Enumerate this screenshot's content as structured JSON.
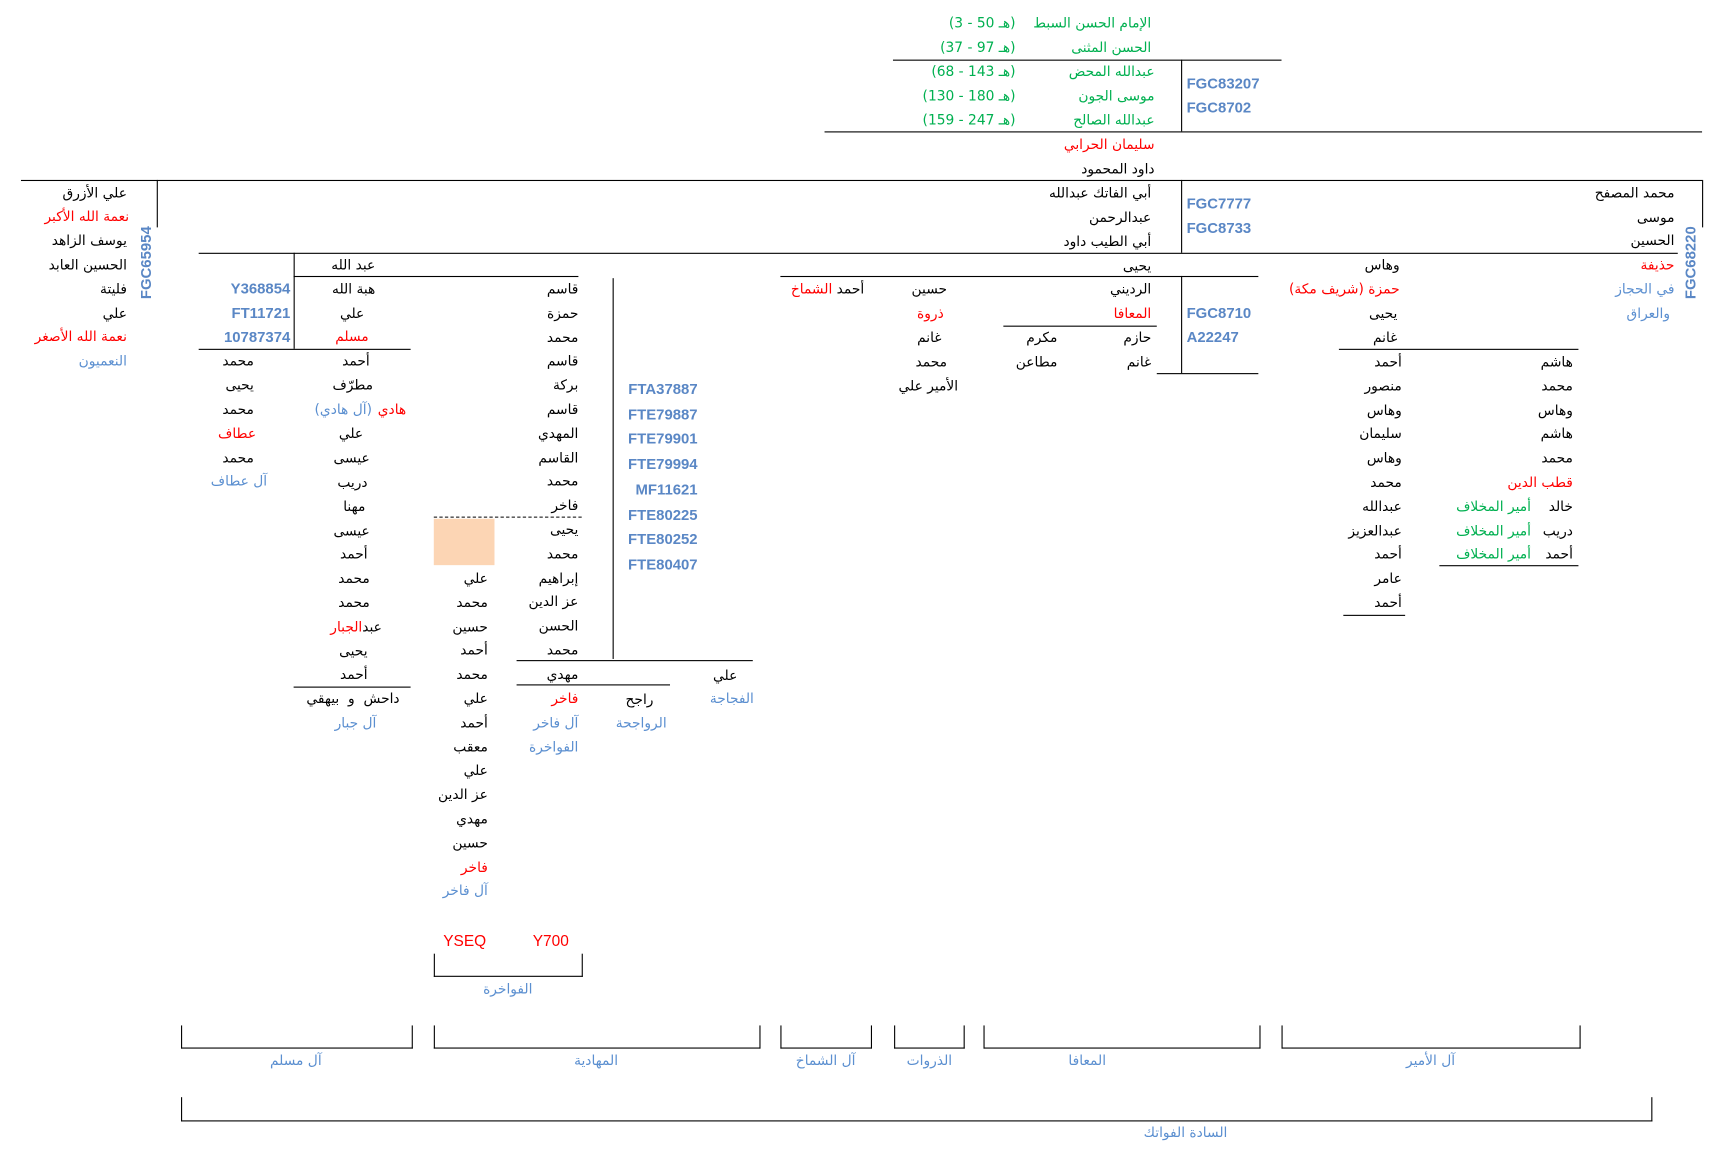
{
  "header_lineage": [
    {
      "name": "الإمام الحسن السبط",
      "dates": "(هـ 50 - 3)"
    },
    {
      "name": "الحسن المثنى",
      "dates": "(هـ 97 - 37)"
    },
    {
      "name": "عبدالله المحض",
      "dates": "(هـ 143 - 68)"
    },
    {
      "name": "موسى الجون",
      "dates": "(هـ 180 - 130)"
    },
    {
      "name": "عبدالله الصالح",
      "dates": "(هـ 247 - 159)"
    }
  ],
  "header_codes": [
    "FGC83207",
    "FGC8702"
  ],
  "sulayman": [
    "سليمان الحرابي",
    "داود المحمود"
  ],
  "fawatik": [
    "أبي الفاتك عبدالله",
    "عبدالرحمن",
    "أبي الطيب داود"
  ],
  "fawatik_codes": [
    "FGC7777",
    "FGC8733"
  ],
  "left_branch": {
    "names": [
      "علي الأزرق",
      "نعمة الله الأكبر",
      "يوسف الزاهد",
      "الحسين العابد",
      "فليتة",
      "علي",
      "نعمة الله الأصغر",
      "النعميون"
    ],
    "code": "FGC65954"
  },
  "right_branch": {
    "names": [
      "محمد المصفح",
      "موسى",
      "الحسين",
      "حذيفة",
      "في الحجاز",
      "والعراق"
    ],
    "code": "FGC68220"
  },
  "abdullah": {
    "title": "عبد الله",
    "names": [
      "هبة الله",
      "علي",
      "مسلم"
    ],
    "codes": [
      "Y368854",
      "FT11721",
      "10787374"
    ]
  },
  "atif_col": [
    "محمد",
    "يحيى",
    "محمد",
    "عطاف",
    "محمد",
    "آل عطاف"
  ],
  "jabbar_col": {
    "names": [
      "أحمد",
      "مطرّف"
    ],
    "hadi": "هادي",
    "hadi_family": "(آل هادي)",
    "names2": [
      "علي",
      "عيسى",
      "دريب",
      "مهنا",
      "عيسى",
      "أحمد",
      "محمد",
      "محمد"
    ],
    "abd": "عبد",
    "jabbar": "الجبار",
    "names3": [
      "يحيى",
      "أحمد"
    ],
    "sons": "داحش  و  بيهقي",
    "family": "آل جبار"
  },
  "qasim_col": [
    "قاسم",
    "حمزة",
    "محمد",
    "قاسم",
    "بركة",
    "قاسم",
    "المهدي",
    "القاسم",
    "محمد",
    "فاخر",
    "يحيى",
    "محمد",
    "إبراهيم",
    "عز الدين",
    "الحسن",
    "محمد",
    "مهدي"
  ],
  "mahadiya_codes": [
    "FTA37887",
    "FTE79887",
    "FTE79901",
    "FTE79994",
    "MF11621",
    "FTE80225",
    "FTE80252",
    "FTE80407"
  ],
  "fakhir2_col": [
    "علي",
    "محمد",
    "حسين",
    "أحمد",
    "محمد",
    "علي",
    "أحمد",
    "معقب",
    "علي",
    "عز الدين",
    "مهدي",
    "حسين",
    "فاخر",
    "آل فاخر"
  ],
  "fakhir1": {
    "name": "فاخر",
    "family": "آل فاخر",
    "clan": "الفواخرة"
  },
  "rajih": {
    "name": "راجح",
    "family": "الرواجحة"
  },
  "fajaja": {
    "name": "علي",
    "family": "الفجاجة"
  },
  "fawakhira_codes": [
    "YSEQ",
    "Y700"
  ],
  "fawakhira_label": "الفواخرة",
  "yahya": {
    "title": "يحيى",
    "codes": [
      "FGC8710",
      "A22247"
    ]
  },
  "muafa_col": [
    "الرديني",
    "المعافا",
    "حازم",
    "غانم"
  ],
  "mukrim_col": [
    "مكرم",
    "مطاعن"
  ],
  "dhirwa_col": [
    "حسين",
    "ذروة",
    "غانم",
    "محمد",
    "الأمير علي"
  ],
  "shammakh": {
    "first": "أحمد",
    "last": "الشماخ"
  },
  "wahhas_col": [
    "وهاس",
    "حمزة (شريف مكة)",
    "يحيى",
    "غانم"
  ],
  "amir_left_col": [
    "أحمد",
    "منصور",
    "وهاس",
    "سليمان",
    "وهاس",
    "محمد",
    "عبدالله",
    "عبدالعزيز",
    "أحمد",
    "عامر",
    "أحمد"
  ],
  "amir_right_col": [
    "هاشم",
    "محمد",
    "وهاس",
    "هاشم",
    "محمد",
    "قطب الدين",
    "خالد",
    "دريب",
    "أحمد"
  ],
  "amir_title": "أمير المخلاف",
  "groups": [
    "آل مسلم",
    "المهادية",
    "آل الشماخ",
    "الذروات",
    "المعافا",
    "آل الأمير"
  ],
  "all_label": "السادة الفواتك",
  "colors": {
    "green": "#00b050",
    "red": "#ff0000",
    "blue": "#5b8fd0",
    "code": "#5a87c5",
    "highlight": "#fcd5b4"
  }
}
